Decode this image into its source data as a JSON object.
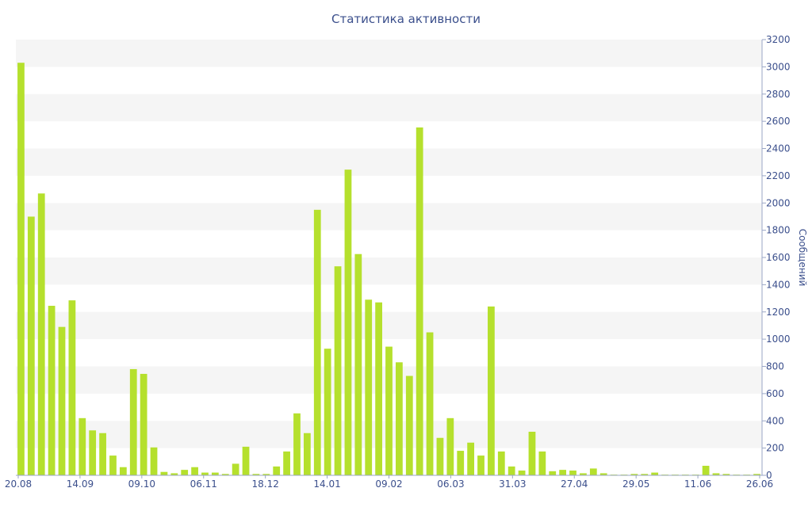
{
  "chart_data": {
    "type": "bar",
    "title": "Статистика активности",
    "ylabel": "Сообщений",
    "xlabel": "",
    "ylim": [
      0,
      3200
    ],
    "yticks": [
      0,
      200,
      400,
      600,
      800,
      1000,
      1200,
      1400,
      1600,
      1800,
      2000,
      2200,
      2400,
      2600,
      2800,
      3000,
      3200
    ],
    "x_tick_labels": [
      "20.08",
      "14.09",
      "09.10",
      "06.11",
      "18.12",
      "14.01",
      "09.02",
      "06.03",
      "31.03",
      "27.04",
      "29.05",
      "11.06",
      "26.06"
    ],
    "bar_color": "#b5e02d",
    "grid": true,
    "y_axis_side": "right",
    "values": [
      3030,
      1900,
      2070,
      1245,
      1090,
      1285,
      420,
      330,
      310,
      145,
      60,
      780,
      745,
      205,
      25,
      15,
      40,
      60,
      20,
      20,
      10,
      85,
      210,
      10,
      10,
      65,
      175,
      455,
      310,
      1950,
      930,
      1535,
      2245,
      1625,
      1290,
      1270,
      945,
      830,
      730,
      2555,
      1050,
      275,
      420,
      180,
      240,
      145,
      1240,
      175,
      65,
      35,
      320,
      175,
      30,
      40,
      35,
      15,
      50,
      15,
      5,
      5,
      10,
      10,
      20,
      5,
      5,
      5,
      5,
      70,
      15,
      10,
      5,
      5,
      10
    ]
  }
}
